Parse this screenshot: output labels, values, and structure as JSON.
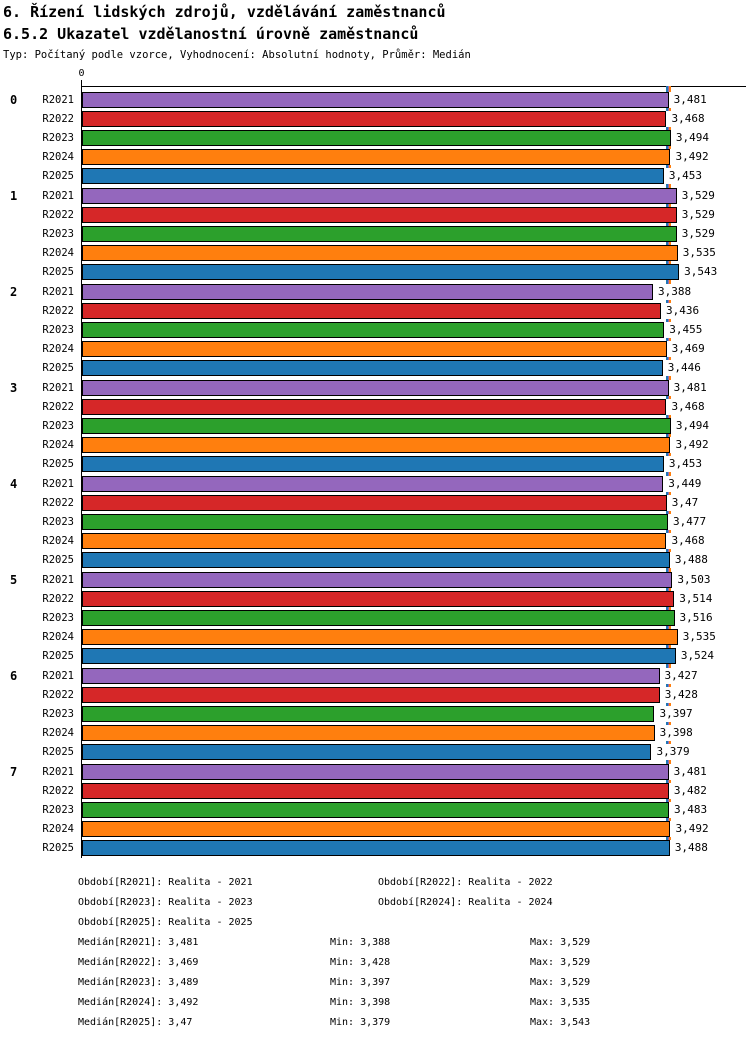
{
  "header": {
    "title_line1": "6. Řízení lidských zdrojů, vzdělávání zaměstnanců",
    "title_line2": "6.5.2 Ukazatel vzdělanostní úrovně zaměstnanců",
    "subtitle": "Typ: Počítaný podle vzorce, Vyhodnocení: Absolutní hodnoty, Průměr: Medián"
  },
  "chart_data": {
    "type": "bar",
    "orientation": "horizontal",
    "title": "6.5.2 Ukazatel vzdělanostní úrovně zaměstnanců",
    "x_axis": {
      "position": "top",
      "zero_label": "0",
      "xlim": [
        0,
        3.94
      ],
      "gridlines": false
    },
    "groups": [
      "0",
      "1",
      "2",
      "3",
      "4",
      "5",
      "6",
      "7"
    ],
    "series_labels": [
      "R2021",
      "R2022",
      "R2023",
      "R2024",
      "R2025"
    ],
    "series_colors": [
      "#9467bd",
      "#d62728",
      "#2ca02c",
      "#ff7f0e",
      "#1f77b4"
    ],
    "decimal_separator": ",",
    "values": [
      [
        3.481,
        3.468,
        3.494,
        3.492,
        3.453
      ],
      [
        3.529,
        3.529,
        3.529,
        3.535,
        3.543
      ],
      [
        3.388,
        3.436,
        3.455,
        3.469,
        3.446
      ],
      [
        3.481,
        3.468,
        3.494,
        3.492,
        3.453
      ],
      [
        3.449,
        3.47,
        3.477,
        3.468,
        3.488
      ],
      [
        3.503,
        3.514,
        3.516,
        3.535,
        3.524
      ],
      [
        3.427,
        3.428,
        3.397,
        3.398,
        3.379
      ],
      [
        3.481,
        3.482,
        3.483,
        3.492,
        3.488
      ]
    ],
    "median_lines": [
      3.481,
      3.469,
      3.489,
      3.492,
      3.47
    ]
  },
  "legend_periods": [
    "Období[R2021]: Realita - 2021",
    "Období[R2022]: Realita - 2022",
    "Období[R2023]: Realita - 2023",
    "Období[R2024]: Realita - 2024",
    "Období[R2025]: Realita - 2025"
  ],
  "legend_stats": [
    {
      "median_label": "Medián[R2021]: 3,481",
      "min_label": "Min: 3,388",
      "max_label": "Max: 3,529"
    },
    {
      "median_label": "Medián[R2022]: 3,469",
      "min_label": "Min: 3,428",
      "max_label": "Max: 3,529"
    },
    {
      "median_label": "Medián[R2023]: 3,489",
      "min_label": "Min: 3,397",
      "max_label": "Max: 3,529"
    },
    {
      "median_label": "Medián[R2024]: 3,492",
      "min_label": "Min: 3,398",
      "max_label": "Max: 3,535"
    },
    {
      "median_label": "Medián[R2025]: 3,47",
      "min_label": "Min: 3,379",
      "max_label": "Max: 3,543"
    }
  ]
}
